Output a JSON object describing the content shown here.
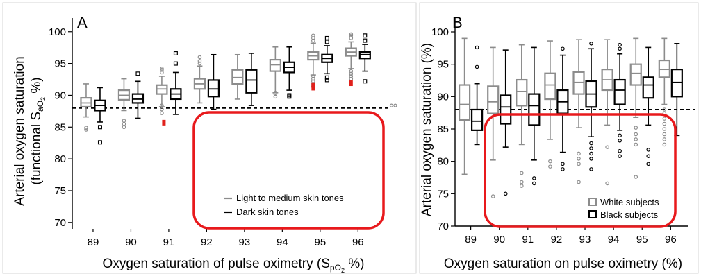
{
  "chart_data": [
    {
      "type": "box",
      "panel_label": "A",
      "ylabel_line1": "Arterial oxygen saturation",
      "ylabel_line2_prefix": "(functional S",
      "ylabel_line2_sub": "aO",
      "ylabel_line2_subsub": "2",
      "ylabel_line2_suffix": " %)",
      "xlabel_prefix": "Oxygen saturation of pulse oximetry (S",
      "xlabel_sub": "pO",
      "xlabel_subsub": "2",
      "xlabel_suffix": " %)",
      "ylim": [
        69,
        101.5
      ],
      "yticks": [
        70,
        75,
        80,
        85,
        90,
        95,
        100
      ],
      "categories": [
        "89",
        "90",
        "91",
        "92",
        "93",
        "94",
        "95",
        "96"
      ],
      "reference_line": 88,
      "legend_position": "bottom-right",
      "series": [
        {
          "name": "Light to medium skin tones",
          "color": "#8c8c8c",
          "boxes": [
            {
              "whislo": 86.6,
              "q1": 88.2,
              "med": 88.8,
              "q3": 89.6,
              "whishi": 91.8,
              "fliers": [
                84.6,
                84.9
              ]
            },
            {
              "whislo": 87.6,
              "q1": 89.3,
              "med": 90.0,
              "q3": 90.8,
              "whishi": 92.6,
              "fliers": [
                86.0,
                85.5,
                85.0
              ]
            },
            {
              "whislo": 88.2,
              "q1": 90.2,
              "med": 91.0,
              "q3": 91.6,
              "whishi": 93.0,
              "fliers": [
                87.2,
                87.8,
                88.4,
                93.6,
                94.0,
                94.2
              ]
            },
            {
              "whislo": 88.8,
              "q1": 91.0,
              "med": 91.8,
              "q3": 92.6,
              "whishi": 94.6,
              "fliers": [
                95.0,
                95.4,
                96.0
              ]
            },
            {
              "whislo": 89.4,
              "q1": 91.8,
              "med": 92.8,
              "q3": 94.0,
              "whishi": 96.4,
              "fliers": []
            },
            {
              "whislo": 90.4,
              "q1": 93.8,
              "med": 94.8,
              "q3": 95.6,
              "whishi": 97.6,
              "fliers": [
                89.8,
                90.2,
                90.4
              ]
            },
            {
              "whislo": 93.2,
              "q1": 95.6,
              "med": 96.2,
              "q3": 96.8,
              "whishi": 98.2,
              "fliers": [
                91.4,
                91.8,
                92.2,
                92.6,
                93.0,
                98.6,
                99.0,
                99.4
              ]
            },
            {
              "whislo": 94.2,
              "q1": 96.2,
              "med": 96.8,
              "q3": 97.4,
              "whishi": 98.4,
              "fliers": [
                92.6,
                93.0,
                93.4,
                93.8,
                99.0,
                99.4,
                99.6
              ]
            }
          ]
        },
        {
          "name": "Dark skin tones",
          "color": "#000000",
          "boxes": [
            {
              "whislo": 85.8,
              "q1": 87.6,
              "med": 88.4,
              "q3": 89.2,
              "whishi": 91.2,
              "fliers": [
                85.0,
                82.6
              ]
            },
            {
              "whislo": 86.4,
              "q1": 88.8,
              "med": 89.4,
              "q3": 90.2,
              "whishi": 92.2,
              "fliers": [
                93.4
              ]
            },
            {
              "whislo": 87.0,
              "q1": 89.4,
              "med": 90.2,
              "q3": 91.0,
              "whishi": 93.6,
              "fliers": [
                95.0,
                96.6
              ]
            },
            {
              "whislo": 87.8,
              "q1": 89.8,
              "med": 91.0,
              "q3": 92.4,
              "whishi": 96.4,
              "fliers": []
            },
            {
              "whislo": 88.4,
              "q1": 90.4,
              "med": 92.4,
              "q3": 94.0,
              "whishi": 96.6,
              "fliers": []
            },
            {
              "whislo": 90.8,
              "q1": 93.6,
              "med": 94.4,
              "q3": 95.2,
              "whishi": 97.6,
              "fliers": [
                89.8,
                90.0
              ]
            },
            {
              "whislo": 93.4,
              "q1": 95.2,
              "med": 95.8,
              "q3": 96.4,
              "whishi": 97.8,
              "fliers": [
                92.4,
                92.8,
                98.4,
                99.0
              ]
            },
            {
              "whislo": 93.8,
              "q1": 95.8,
              "med": 96.4,
              "q3": 96.8,
              "whishi": 98.0,
              "fliers": [
                92.2,
                98.6,
                99.4
              ]
            }
          ]
        }
      ],
      "red_markers": [
        {
          "x": "91",
          "y": 85.7
        },
        {
          "x": "95",
          "y": 91.6
        },
        {
          "x": "95",
          "y": 91.2
        },
        {
          "x": "96",
          "y": 91.9
        }
      ],
      "extra_points": [
        {
          "x": 96.7,
          "y": 88.4,
          "color": "#8c8c8c"
        },
        {
          "x": 96.8,
          "y": 88.4,
          "color": "#8c8c8c"
        }
      ]
    },
    {
      "type": "box",
      "panel_label": "B",
      "ylabel": "Arterial oxygen saturation (%)",
      "xlabel": "Oxygen saturation on pulse oximetry (%)",
      "ylim": [
        70,
        101.5
      ],
      "yticks": [
        70,
        75,
        80,
        85,
        90,
        95,
        100
      ],
      "categories": [
        "89",
        "90",
        "91",
        "92",
        "93",
        "94",
        "95",
        "96"
      ],
      "reference_line": 88,
      "legend_position": "bottom-right",
      "series": [
        {
          "name": "White subjects",
          "color": "#8c8c8c",
          "boxes": [
            {
              "whislo": 78.0,
              "q1": 86.4,
              "med": 88.8,
              "q3": 91.8,
              "whishi": 99.0,
              "fliers": []
            },
            {
              "whislo": 80.2,
              "q1": 87.4,
              "med": 89.2,
              "q3": 91.6,
              "whishi": 97.6,
              "fliers": [
                74.6
              ]
            },
            {
              "whislo": 82.6,
              "q1": 88.6,
              "med": 90.8,
              "q3": 92.6,
              "whishi": 98.0,
              "fliers": [
                76.2,
                76.8,
                78.2
              ]
            },
            {
              "whislo": 83.4,
              "q1": 89.6,
              "med": 91.8,
              "q3": 93.6,
              "whishi": 98.6,
              "fliers": [
                79.2,
                80.0
              ]
            },
            {
              "whislo": 85.2,
              "q1": 90.4,
              "med": 92.2,
              "q3": 93.8,
              "whishi": 98.8,
              "fliers": [
                76.8,
                79.6,
                80.4,
                81.2
              ]
            },
            {
              "whislo": 85.6,
              "q1": 91.0,
              "med": 92.6,
              "q3": 94.2,
              "whishi": 98.8,
              "fliers": [
                76.6,
                82.2
              ]
            },
            {
              "whislo": 86.8,
              "q1": 91.8,
              "med": 93.6,
              "q3": 95.0,
              "whishi": 99.0,
              "fliers": [
                77.6,
                82.6,
                83.4,
                84.2,
                85.2
              ]
            },
            {
              "whislo": 88.8,
              "q1": 93.0,
              "med": 94.2,
              "q3": 95.6,
              "whishi": 99.0,
              "fliers": [
                82.6,
                83.4,
                84.2,
                85.0,
                85.8,
                86.6,
                87.4,
                88.0
              ]
            }
          ]
        },
        {
          "name": "Black subjects",
          "color": "#000000",
          "boxes": [
            {
              "whislo": 82.6,
              "q1": 84.8,
              "med": 86.2,
              "q3": 88.0,
              "whishi": 92.0,
              "fliers": [
                94.6,
                97.6
              ]
            },
            {
              "whislo": 82.2,
              "q1": 85.8,
              "med": 88.4,
              "q3": 90.2,
              "whishi": 97.2,
              "fliers": [
                75.0
              ]
            },
            {
              "whislo": 80.2,
              "q1": 85.6,
              "med": 88.6,
              "q3": 90.4,
              "whishi": 97.6,
              "fliers": [
                76.6,
                77.4
              ]
            },
            {
              "whislo": 81.4,
              "q1": 87.4,
              "med": 89.2,
              "q3": 91.0,
              "whishi": 96.4,
              "fliers": [
                78.8,
                79.6,
                97.4
              ]
            },
            {
              "whislo": 83.8,
              "q1": 88.4,
              "med": 90.4,
              "q3": 92.4,
              "whishi": 97.4,
              "fliers": [
                78.8,
                80.4,
                81.2,
                82.0,
                82.8,
                98.2
              ]
            },
            {
              "whislo": 84.8,
              "q1": 88.8,
              "med": 91.0,
              "q3": 92.6,
              "whishi": 96.6,
              "fliers": [
                80.8,
                81.6,
                83.2,
                84.0,
                97.4,
                98.0
              ]
            },
            {
              "whislo": 85.6,
              "q1": 89.8,
              "med": 91.8,
              "q3": 93.0,
              "whishi": 97.6,
              "fliers": [
                79.6,
                80.8,
                81.8
              ]
            },
            {
              "whislo": 84.0,
              "q1": 90.0,
              "med": 92.2,
              "q3": 94.2,
              "whishi": 98.2,
              "fliers": []
            }
          ]
        }
      ]
    }
  ]
}
